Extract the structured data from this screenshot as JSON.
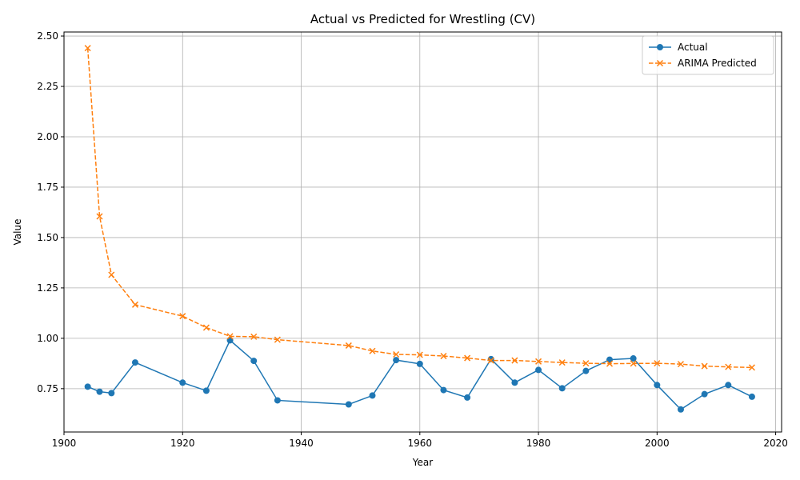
{
  "chart_data": {
    "type": "line",
    "title": "Actual vs Predicted for Wrestling (CV)",
    "xlabel": "Year",
    "ylabel": "Value",
    "xlim": [
      1900,
      2021
    ],
    "ylim": [
      0.535,
      2.52
    ],
    "x_ticks": [
      1900,
      1920,
      1940,
      1960,
      1980,
      2000,
      2020
    ],
    "y_ticks": [
      0.75,
      1.0,
      1.25,
      1.5,
      1.75,
      2.0,
      2.25,
      2.5
    ],
    "y_tick_labels": [
      "0.75",
      "1.00",
      "1.25",
      "1.50",
      "1.75",
      "2.00",
      "2.25",
      "2.50"
    ],
    "grid": true,
    "legend_position": "top-right",
    "x": [
      1904,
      1906,
      1908,
      1912,
      1920,
      1924,
      1928,
      1932,
      1936,
      1948,
      1952,
      1956,
      1960,
      1964,
      1968,
      1972,
      1976,
      1980,
      1984,
      1988,
      1992,
      1996,
      2000,
      2004,
      2008,
      2012,
      2016
    ],
    "series": [
      {
        "name": "Actual",
        "color": "#1f77b4",
        "marker": "circle",
        "linestyle": "solid",
        "values": [
          0.76,
          0.735,
          0.728,
          0.88,
          0.78,
          0.74,
          0.99,
          0.888,
          0.692,
          0.672,
          0.716,
          0.892,
          0.873,
          0.743,
          0.706,
          0.897,
          0.78,
          0.843,
          0.752,
          0.838,
          0.894,
          0.9,
          0.768,
          0.647,
          0.723,
          0.768,
          0.71
        ]
      },
      {
        "name": "ARIMA Predicted",
        "color": "#ff7f0e",
        "marker": "x",
        "linestyle": "dashed",
        "values": [
          2.44,
          1.605,
          1.315,
          1.167,
          1.11,
          1.053,
          1.01,
          1.008,
          0.993,
          0.964,
          0.937,
          0.92,
          0.918,
          0.912,
          0.902,
          0.89,
          0.89,
          0.885,
          0.88,
          0.876,
          0.874,
          0.875,
          0.876,
          0.872,
          0.862,
          0.858,
          0.855
        ]
      }
    ]
  }
}
